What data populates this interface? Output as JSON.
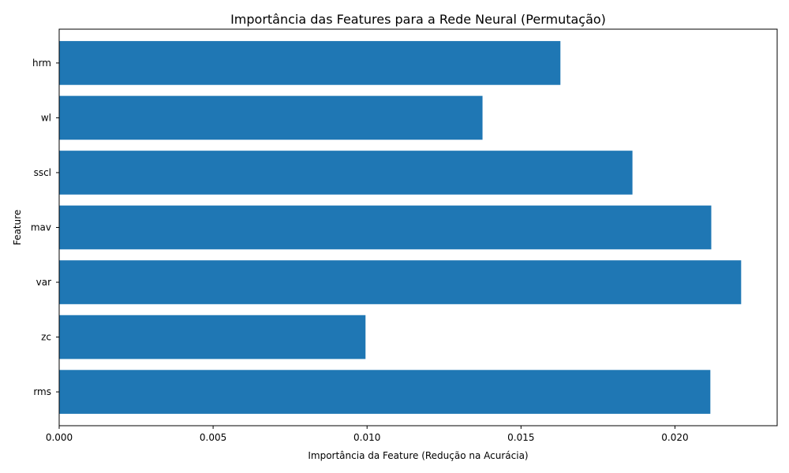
{
  "chart_data": {
    "type": "bar",
    "orientation": "horizontal",
    "title": "Importância das Features para a Rede Neural (Permutação)",
    "xlabel": "Importância da Feature (Redução na Acurácia)",
    "ylabel": "Feature",
    "categories": [
      "rms",
      "zc",
      "var",
      "mav",
      "sscl",
      "wl",
      "hrm"
    ],
    "values": [
      0.02115,
      0.00995,
      0.02215,
      0.02118,
      0.01862,
      0.01375,
      0.01628
    ],
    "xlim": [
      0,
      0.02332
    ],
    "xticks": [
      0.0,
      0.005,
      0.01,
      0.015,
      0.02
    ],
    "xtick_labels": [
      "0.000",
      "0.005",
      "0.010",
      "0.015",
      "0.020"
    ],
    "bar_color": "#1f77b4",
    "grid": false,
    "legend": "none"
  }
}
